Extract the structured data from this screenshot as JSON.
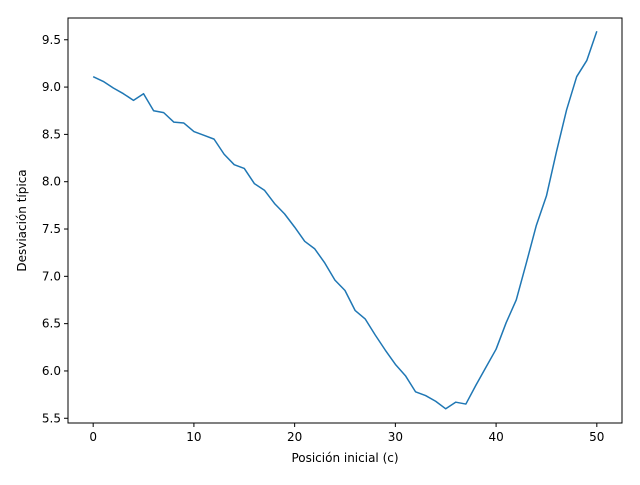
{
  "chart_data": {
    "type": "line",
    "title": "",
    "xlabel": "Posición inicial (c)",
    "ylabel": "Desviación típica",
    "xlim": [
      -2.5,
      52.5
    ],
    "ylim": [
      5.45,
      9.73
    ],
    "xticks": [
      0,
      10,
      20,
      30,
      40,
      50
    ],
    "yticks": [
      5.5,
      6.0,
      6.5,
      7.0,
      7.5,
      8.0,
      8.5,
      9.0,
      9.5
    ],
    "xtick_labels": [
      "0",
      "10",
      "20",
      "30",
      "40",
      "50"
    ],
    "ytick_labels": [
      "5.5",
      "6.0",
      "6.5",
      "7.0",
      "7.5",
      "8.0",
      "8.5",
      "9.0",
      "9.5"
    ],
    "grid": false,
    "series": [
      {
        "color": "#1f77b4",
        "x": [
          0,
          1,
          2,
          3,
          4,
          5,
          6,
          7,
          8,
          9,
          10,
          11,
          12,
          13,
          14,
          15,
          16,
          17,
          18,
          19,
          20,
          21,
          22,
          23,
          24,
          25,
          26,
          27,
          28,
          29,
          30,
          31,
          32,
          33,
          34,
          35,
          36,
          37,
          38,
          39,
          40,
          41,
          42,
          43,
          44,
          45,
          46,
          47,
          48,
          49,
          50
        ],
        "y": [
          9.11,
          9.06,
          8.99,
          8.93,
          8.86,
          8.93,
          8.75,
          8.73,
          8.63,
          8.62,
          8.53,
          8.49,
          8.45,
          8.29,
          8.18,
          8.14,
          7.98,
          7.91,
          7.77,
          7.66,
          7.52,
          7.37,
          7.29,
          7.14,
          6.96,
          6.85,
          6.64,
          6.55,
          6.38,
          6.22,
          6.07,
          5.95,
          5.78,
          5.74,
          5.68,
          5.6,
          5.67,
          5.65,
          5.85,
          6.04,
          6.23,
          6.51,
          6.75,
          7.14,
          7.54,
          7.85,
          8.32,
          8.76,
          9.11,
          9.28,
          9.59
        ]
      }
    ]
  }
}
